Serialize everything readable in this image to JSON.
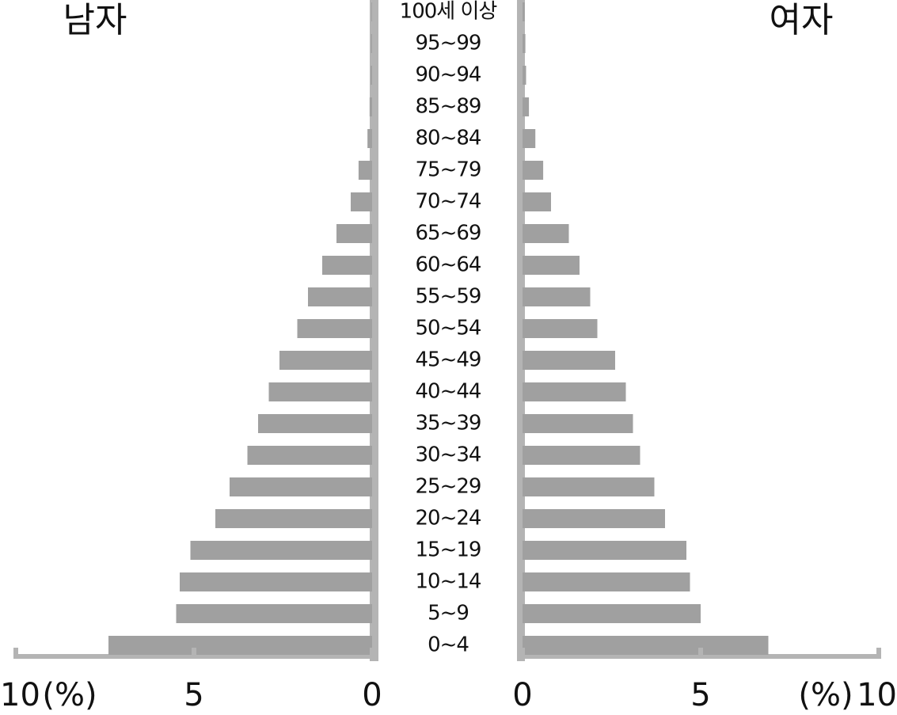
{
  "chart_data": {
    "type": "pyramid",
    "categories": [
      "0~4",
      "5~9",
      "10~14",
      "15~19",
      "20~24",
      "25~29",
      "30~34",
      "35~39",
      "40~44",
      "45~49",
      "50~54",
      "55~59",
      "60~64",
      "65~69",
      "70~74",
      "75~79",
      "80~84",
      "85~89",
      "90~94",
      "95~99",
      "100세 이상"
    ],
    "series": [
      {
        "name": "남자",
        "color": "#a0a0a0",
        "values": [
          7.4,
          5.5,
          5.4,
          5.1,
          4.4,
          4.0,
          3.5,
          3.2,
          2.9,
          2.6,
          2.1,
          1.8,
          1.4,
          1.0,
          0.6,
          0.38,
          0.13,
          0.07,
          0.04,
          0.03,
          0.02
        ]
      },
      {
        "name": "여자",
        "color": "#a0a0a0",
        "values": [
          6.9,
          5.0,
          4.7,
          4.6,
          4.0,
          3.7,
          3.3,
          3.1,
          2.9,
          2.6,
          2.1,
          1.9,
          1.6,
          1.3,
          0.8,
          0.58,
          0.36,
          0.18,
          0.1,
          0.08,
          0.06
        ]
      }
    ],
    "unit": "(%)",
    "xlim": [
      0,
      10
    ],
    "xticks": [
      0,
      5,
      10
    ]
  }
}
